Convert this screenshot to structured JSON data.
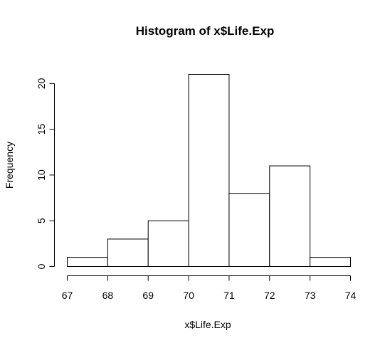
{
  "chart_data": {
    "type": "bar",
    "title": "Histogram of x$Life.Exp",
    "xlabel": "x$Life.Exp",
    "ylabel": "Frequency",
    "bins": [
      {
        "start": 67,
        "end": 68,
        "count": 1
      },
      {
        "start": 68,
        "end": 69,
        "count": 3
      },
      {
        "start": 69,
        "end": 70,
        "count": 5
      },
      {
        "start": 70,
        "end": 71,
        "count": 21
      },
      {
        "start": 71,
        "end": 72,
        "count": 8
      },
      {
        "start": 72,
        "end": 73,
        "count": 11
      },
      {
        "start": 73,
        "end": 74,
        "count": 1
      }
    ],
    "xticks": [
      67,
      68,
      69,
      70,
      71,
      72,
      73,
      74
    ],
    "yticks": [
      0,
      5,
      10,
      15,
      20
    ],
    "xlim": [
      67,
      74
    ],
    "ylim": [
      0,
      21
    ],
    "grid": false,
    "bar_fill": "#ffffff",
    "bar_stroke": "#000000"
  }
}
